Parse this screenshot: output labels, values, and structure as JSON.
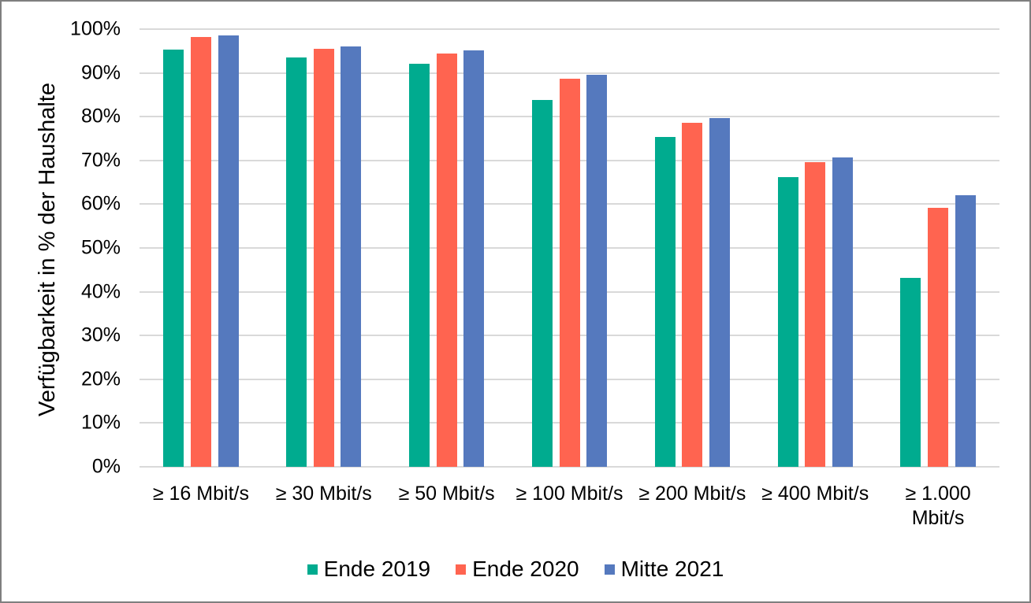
{
  "chart_data": {
    "type": "bar",
    "title": "",
    "xlabel": "",
    "ylabel": "Verfügbarkeit in % der Haushalte",
    "ylim": [
      0,
      100
    ],
    "grid": true,
    "legend_position": "bottom",
    "y_ticks": [
      "0%",
      "10%",
      "20%",
      "30%",
      "40%",
      "50%",
      "60%",
      "70%",
      "80%",
      "90%",
      "100%"
    ],
    "categories": [
      "≥ 16 Mbit/s",
      "≥ 30 Mbit/s",
      "≥ 50 Mbit/s",
      "≥ 100 Mbit/s",
      "≥ 200 Mbit/s",
      "≥ 400 Mbit/s",
      "≥ 1.000 Mbit/s"
    ],
    "x_tick_lines": [
      [
        "≥ 16 Mbit/s"
      ],
      [
        "≥ 30 Mbit/s"
      ],
      [
        "≥ 50 Mbit/s"
      ],
      [
        "≥ 100 Mbit/s"
      ],
      [
        "≥ 200 Mbit/s"
      ],
      [
        "≥ 400 Mbit/s"
      ],
      [
        "≥ 1.000",
        "Mbit/s"
      ]
    ],
    "series": [
      {
        "name": "Ende 2019",
        "color": "#00AB8F",
        "values": [
          95.4,
          93.6,
          92.0,
          83.8,
          75.4,
          66.2,
          43.2
        ]
      },
      {
        "name": "Ende 2020",
        "color": "#FF6450",
        "values": [
          98.2,
          95.5,
          94.4,
          88.6,
          78.6,
          69.6,
          59.2
        ]
      },
      {
        "name": "Mitte 2021",
        "color": "#5579BE",
        "values": [
          98.5,
          96.0,
          95.1,
          89.6,
          79.7,
          70.7,
          62.1
        ]
      }
    ],
    "colors": {
      "gridline": "#D9D9D9",
      "axis_line": "#D9D9D9",
      "text": "#000000",
      "frame_border": "#7F7F7F",
      "background": "#FFFFFF"
    }
  }
}
